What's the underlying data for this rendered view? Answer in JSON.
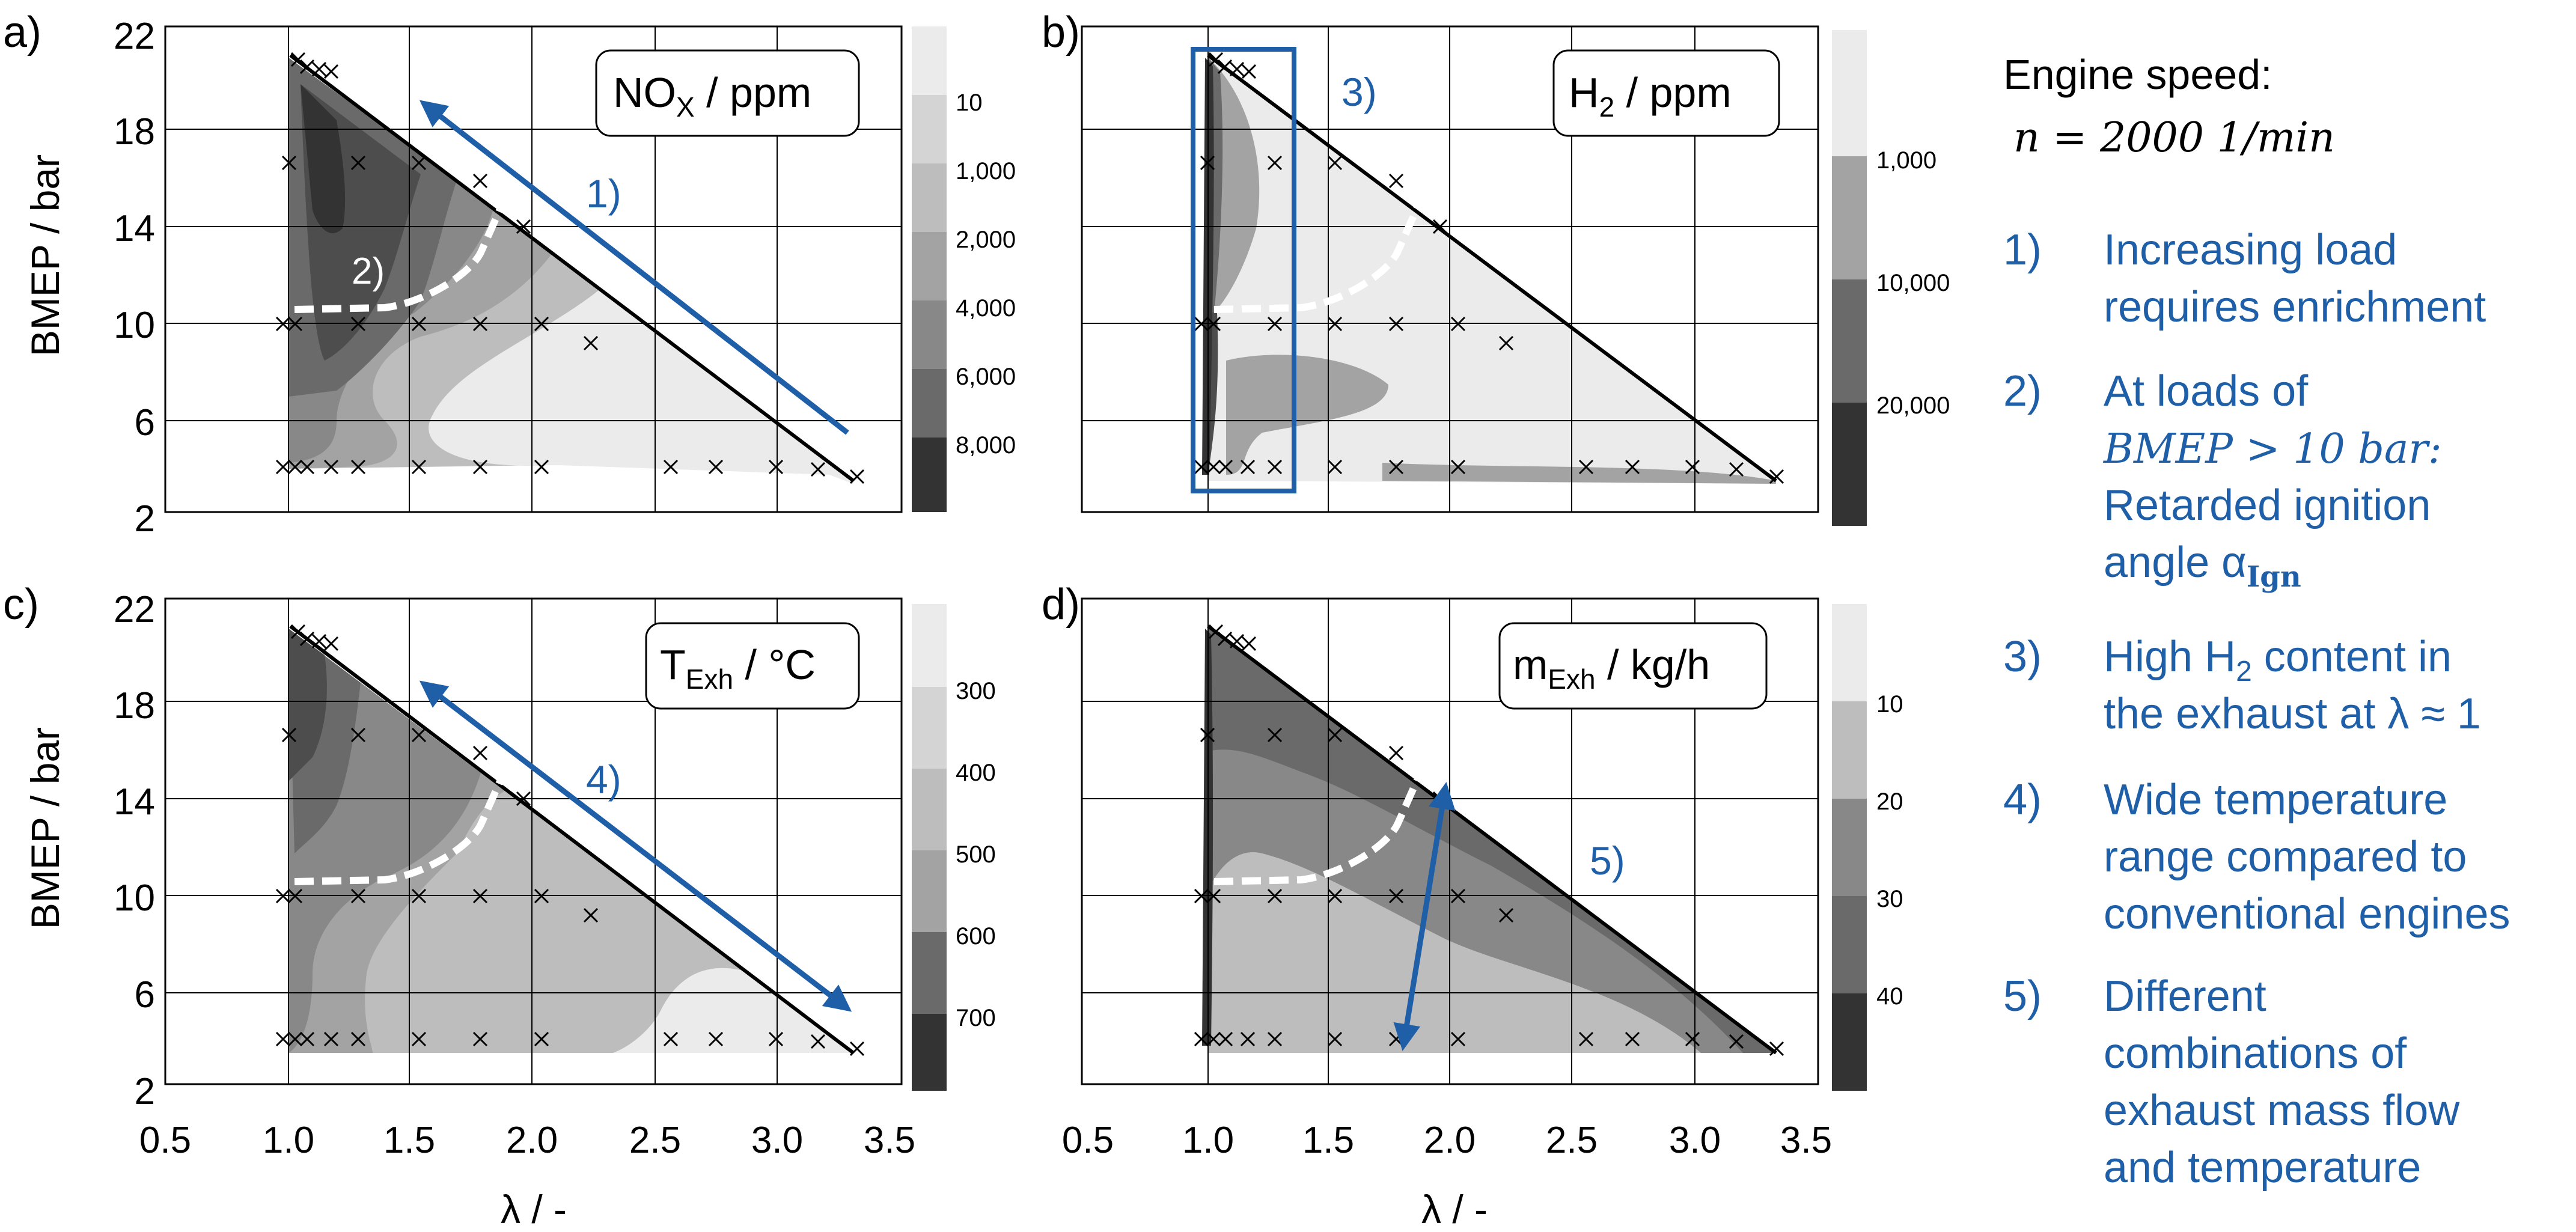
{
  "chart_data": [
    {
      "panel": "a)",
      "type": "contour",
      "title": "NO",
      "title_sub": "X",
      "title_unit": " / ppm",
      "xlabel": "",
      "ylabel": "BMEP / bar",
      "xlim": [
        0.5,
        3.5
      ],
      "ylim": [
        2,
        22
      ],
      "xticks": [],
      "yticks": [
        "2",
        "6",
        "10",
        "14",
        "18",
        "22"
      ],
      "colorbar_labels": [
        "10",
        "1,000",
        "2,000",
        "4,000",
        "6,000",
        "8,000"
      ],
      "annotations": [
        "1)",
        "2)"
      ]
    },
    {
      "panel": "b)",
      "type": "contour",
      "title": "H",
      "title_sub": "2",
      "title_unit": " / ppm",
      "xlabel": "",
      "ylabel": "",
      "xlim": [
        0.5,
        3.5
      ],
      "ylim": [
        2,
        22
      ],
      "xticks": [],
      "yticks": [],
      "colorbar_labels": [
        "1,000",
        "10,000",
        "20,000"
      ],
      "annotations": [
        "3)"
      ]
    },
    {
      "panel": "c)",
      "type": "contour",
      "title": "T",
      "title_sub": "Exh",
      "title_unit": " / °C",
      "xlabel": "λ / -",
      "ylabel": "BMEP / bar",
      "xlim": [
        0.5,
        3.5
      ],
      "ylim": [
        2,
        22
      ],
      "xticks": [
        "0.5",
        "1.0",
        "1.5",
        "2.0",
        "2.5",
        "3.0",
        "3.5"
      ],
      "yticks": [
        "2",
        "6",
        "10",
        "14",
        "18",
        "22"
      ],
      "colorbar_labels": [
        "300",
        "400",
        "500",
        "600",
        "700"
      ],
      "annotations": [
        "4)"
      ]
    },
    {
      "panel": "d)",
      "type": "contour",
      "title": "m",
      "title_sub": "Exh",
      "title_unit": " / kg/h",
      "xlabel": "λ / -",
      "ylabel": "",
      "xlim": [
        0.5,
        3.5
      ],
      "ylim": [
        2,
        22
      ],
      "xticks": [
        "0.5",
        "1.0",
        "1.5",
        "2.0",
        "2.5",
        "3.0",
        "3.5"
      ],
      "yticks": [],
      "colorbar_labels": [
        "10",
        "20",
        "30",
        "40"
      ],
      "annotations": [
        "5)"
      ]
    }
  ],
  "measurement_points": [
    [
      1.0,
      20.7
    ],
    [
      1.02,
      20.3
    ],
    [
      1.05,
      20.2
    ],
    [
      1.1,
      20.0
    ],
    [
      1.15,
      20.0
    ],
    [
      1.2,
      19.8
    ],
    [
      1.0,
      16.2
    ],
    [
      1.25,
      16.2
    ],
    [
      1.5,
      16.2
    ],
    [
      1.75,
      15.5
    ],
    [
      1.95,
      13.6
    ],
    [
      0.96,
      10.2
    ],
    [
      1.0,
      10.2
    ],
    [
      1.02,
      10.2
    ],
    [
      1.05,
      10.2
    ],
    [
      1.25,
      10.2
    ],
    [
      1.5,
      10.2
    ],
    [
      1.75,
      10.2
    ],
    [
      2.0,
      10.2
    ],
    [
      2.2,
      9.4
    ],
    [
      0.96,
      4.0
    ],
    [
      1.0,
      4.0
    ],
    [
      1.02,
      4.0
    ],
    [
      1.05,
      4.0
    ],
    [
      1.1,
      4.0
    ],
    [
      1.2,
      4.0
    ],
    [
      1.5,
      4.0
    ],
    [
      1.75,
      4.0
    ],
    [
      2.0,
      4.0
    ],
    [
      2.55,
      4.0
    ],
    [
      2.75,
      4.0
    ],
    [
      3.0,
      4.0
    ],
    [
      3.2,
      3.9
    ],
    [
      3.4,
      3.5
    ]
  ],
  "legend": {
    "speed_title": "Engine speed:",
    "speed_value": "n = 2000 1/min",
    "items": [
      {
        "num": "1)",
        "lines": [
          "Increasing load",
          "requires enrichment"
        ]
      },
      {
        "num": "2)",
        "lines": [
          "At loads of",
          "BMEP > 10 bar:",
          "Retarded ignition",
          "angle α"
        ],
        "sub": "Ign"
      },
      {
        "num": "3)",
        "lines": [
          "High H",
          " content in",
          "the exhaust at λ ≈ 1"
        ],
        "sub": "2"
      },
      {
        "num": "4)",
        "lines": [
          "Wide temperature",
          "range compared to",
          "conventional engines"
        ]
      },
      {
        "num": "5)",
        "lines": [
          "Different",
          "combinations of",
          "exhaust mass flow",
          "and temperature"
        ]
      }
    ]
  },
  "colors": {
    "accent_blue": "#1f5fa8",
    "grey_scale": [
      "#ebebeb",
      "#d4d4d4",
      "#bdbdbd",
      "#a3a3a3",
      "#888888",
      "#6a6a6a",
      "#4d4d4d",
      "#333333"
    ]
  }
}
